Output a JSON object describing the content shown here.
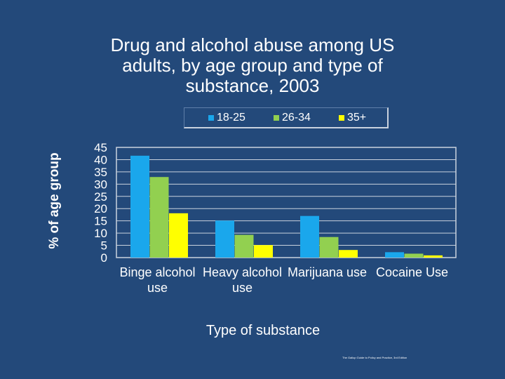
{
  "chart_data": {
    "type": "bar",
    "title_lines": [
      "Drug and alcohol abuse among US",
      "adults, by age group and type of",
      "substance, 2003"
    ],
    "categories": [
      [
        "Binge alcohol",
        "use"
      ],
      [
        "Heavy alcohol",
        "use"
      ],
      [
        "Marijuana use"
      ],
      [
        "Cocaine Use"
      ]
    ],
    "series": [
      {
        "name": "18-25",
        "color": "#1aa7ec",
        "values": [
          41.6,
          15.1,
          17.0,
          2.2
        ]
      },
      {
        "name": "26-34",
        "color": "#92d050",
        "values": [
          32.9,
          9.3,
          8.4,
          1.6
        ]
      },
      {
        "name": "35+",
        "color": "#ffff00",
        "values": [
          18.1,
          5.1,
          3.1,
          0.9
        ]
      }
    ],
    "ylabel": "% of age group",
    "xlabel": "Type of substance",
    "ylim": [
      0,
      45
    ],
    "yticks": [
      "0",
      "5",
      "10",
      "15",
      "20",
      "25",
      "30",
      "35",
      "40",
      "45"
    ],
    "legend_position": "top"
  },
  "credit": "The Gallup Guide to Policy and Practice, 3rd Edition"
}
